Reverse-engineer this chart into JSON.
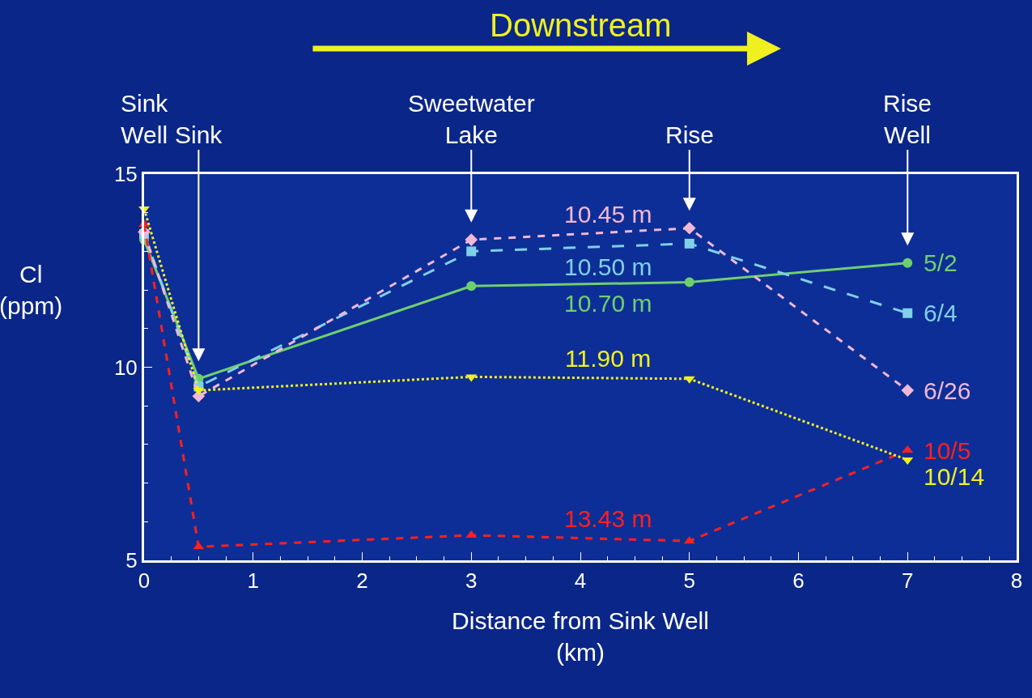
{
  "chart_data": {
    "type": "line",
    "title": "Downstream",
    "xlabel": "Distance from Sink Well\n(km)",
    "ylabel": "Cl\n(ppm)",
    "x": [
      0,
      0.5,
      3,
      5,
      7
    ],
    "series": [
      {
        "name": "5/2",
        "color": "#6fcf6f",
        "marker": "circle",
        "line_style": "solid",
        "values": [
          13.3,
          9.7,
          12.1,
          12.2,
          12.7
        ]
      },
      {
        "name": "6/4",
        "color": "#7fd0e8",
        "marker": "square",
        "line_style": "dashed",
        "values": [
          13.45,
          9.5,
          13.0,
          13.2,
          11.4
        ]
      },
      {
        "name": "6/26",
        "color": "#f0b8d8",
        "marker": "diamond",
        "line_style": "dashed",
        "values": [
          13.5,
          9.25,
          13.3,
          13.6,
          9.4
        ]
      },
      {
        "name": "10/5",
        "color": "#ff2020",
        "marker": "triangle",
        "line_style": "dashed",
        "values": [
          13.7,
          5.35,
          5.65,
          5.5,
          7.85
        ]
      },
      {
        "name": "10/14",
        "color": "#f0f020",
        "marker": "triangle",
        "line_style": "dotted",
        "values": [
          14.1,
          9.4,
          9.75,
          9.7,
          7.6
        ]
      }
    ],
    "xlim": [
      0,
      8
    ],
    "xticks": [
      0,
      1,
      2,
      3,
      4,
      5,
      6,
      7,
      8
    ],
    "ylim": [
      5,
      15
    ],
    "yticks": [
      5,
      10,
      15
    ],
    "grid": false,
    "legend": false,
    "annotations": [
      "10.70 m",
      "10.50 m",
      "10.45 m",
      "13.43 m",
      "11.90 m",
      "Sink\nWell",
      "Sink",
      "Sweetwater\nLake",
      "Rise",
      "Rise\nWell"
    ]
  }
}
